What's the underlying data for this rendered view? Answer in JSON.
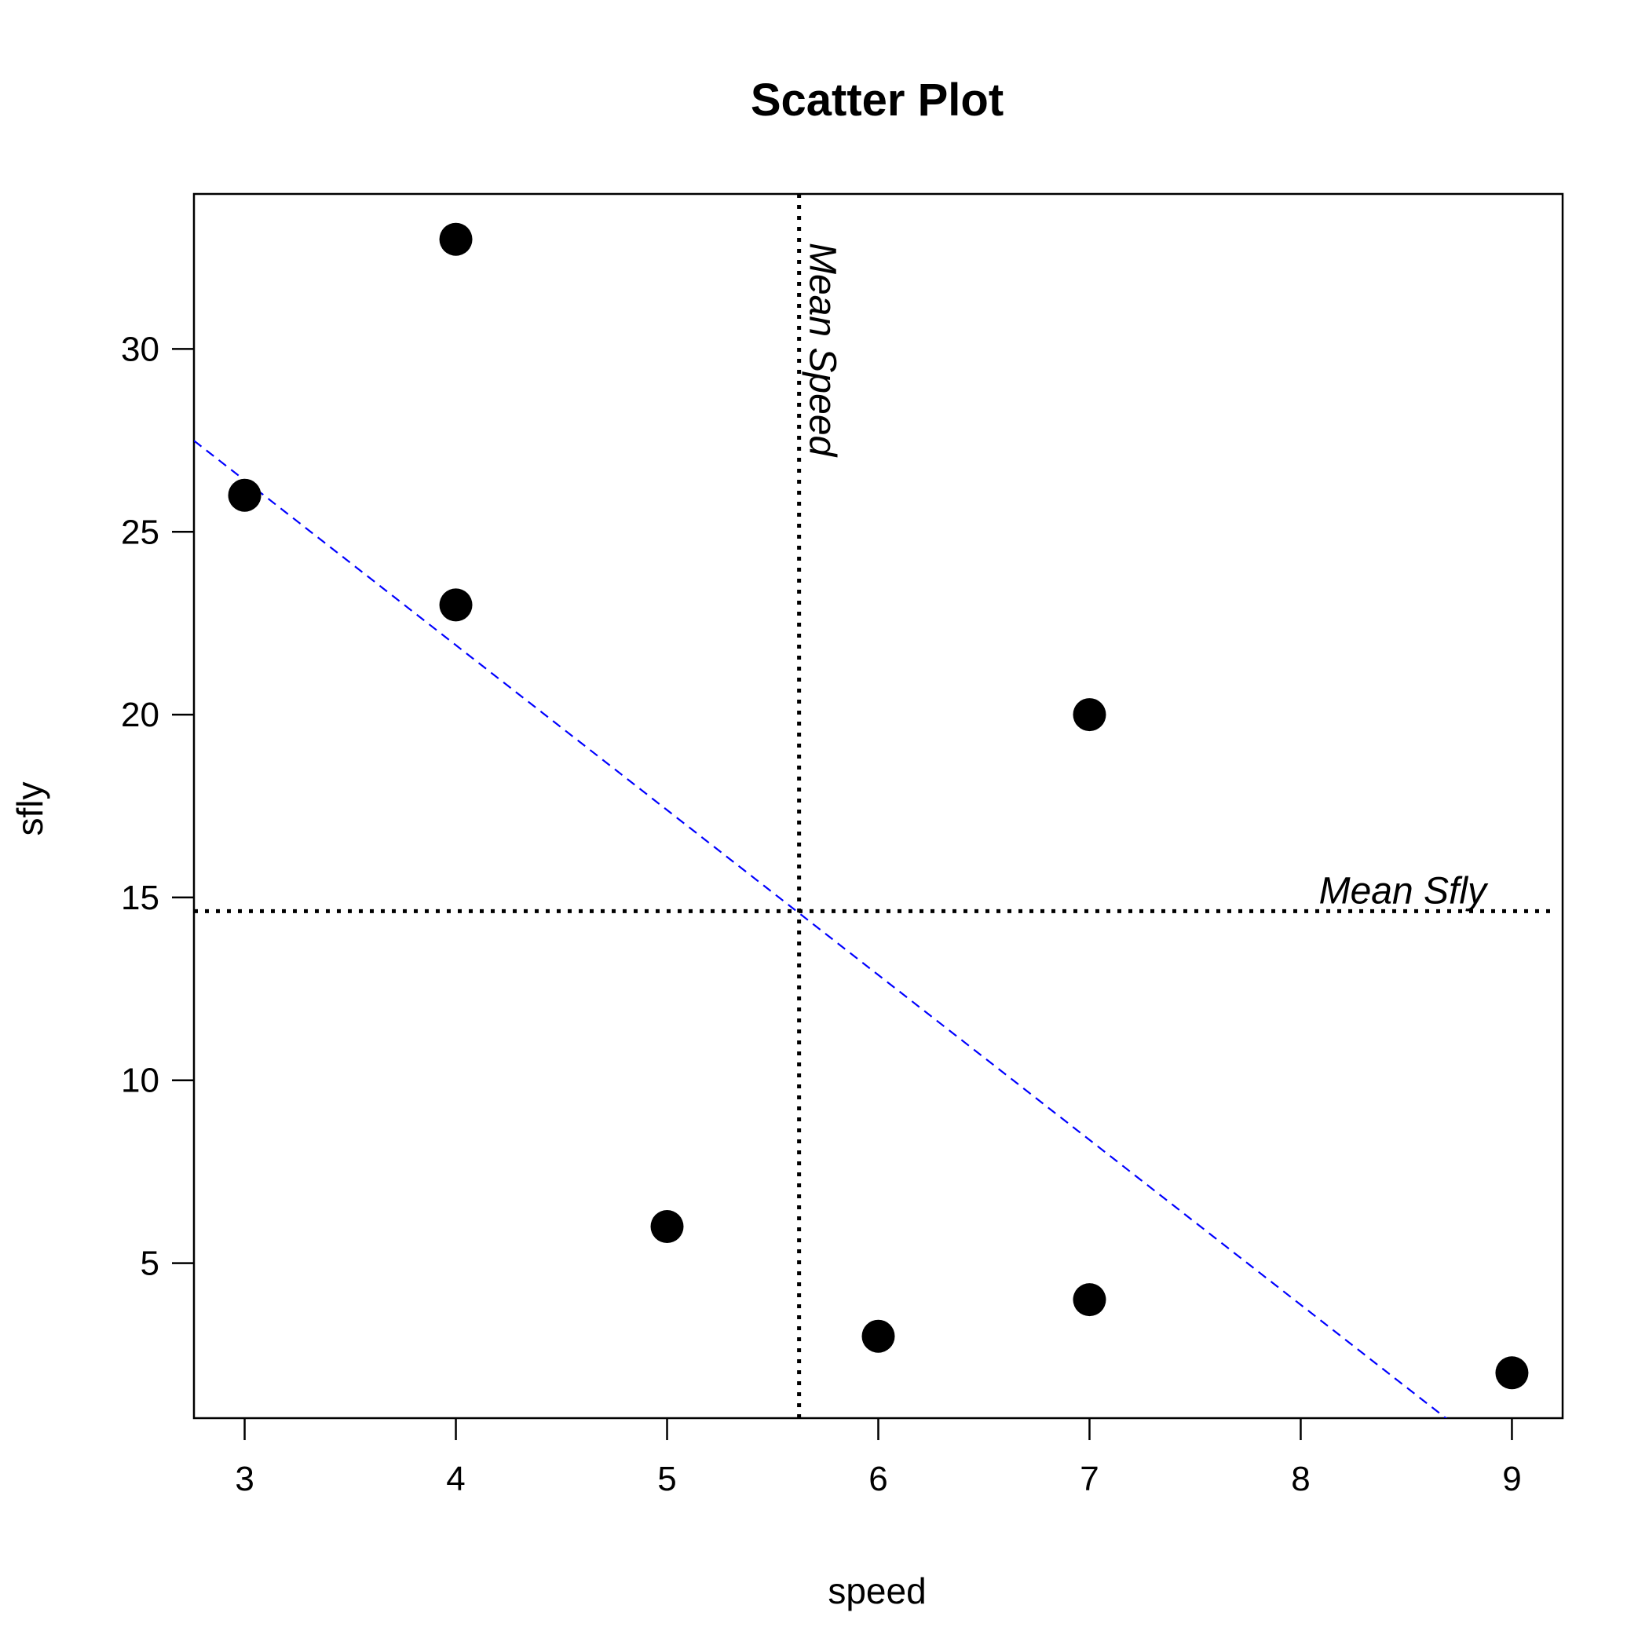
{
  "chart_data": {
    "type": "scatter",
    "title": "Scatter Plot",
    "xlabel": "speed",
    "ylabel": "sfly",
    "xlim": [
      2.76,
      9.24
    ],
    "ylim": [
      0.76,
      34.24
    ],
    "x_ticks": [
      3,
      4,
      5,
      6,
      7,
      8,
      9
    ],
    "y_ticks": [
      5,
      10,
      15,
      20,
      25,
      30
    ],
    "grid": false,
    "points": [
      {
        "x": 3,
        "y": 26
      },
      {
        "x": 4,
        "y": 33
      },
      {
        "x": 4,
        "y": 23
      },
      {
        "x": 5,
        "y": 6
      },
      {
        "x": 6,
        "y": 3
      },
      {
        "x": 7,
        "y": 20
      },
      {
        "x": 7,
        "y": 4
      },
      {
        "x": 9,
        "y": 2
      }
    ],
    "point_color": "#000000",
    "reference_lines": {
      "mean_x": {
        "value": 5.625,
        "label": "Mean Speed",
        "color": "#000000",
        "style": "dotted"
      },
      "mean_y": {
        "value": 14.625,
        "label": "Mean Sfly",
        "color": "#000000",
        "style": "dotted"
      }
    },
    "regression_line": {
      "intercept": 39.94,
      "slope": -4.51,
      "color": "#0000ff",
      "style": "dashed"
    }
  }
}
